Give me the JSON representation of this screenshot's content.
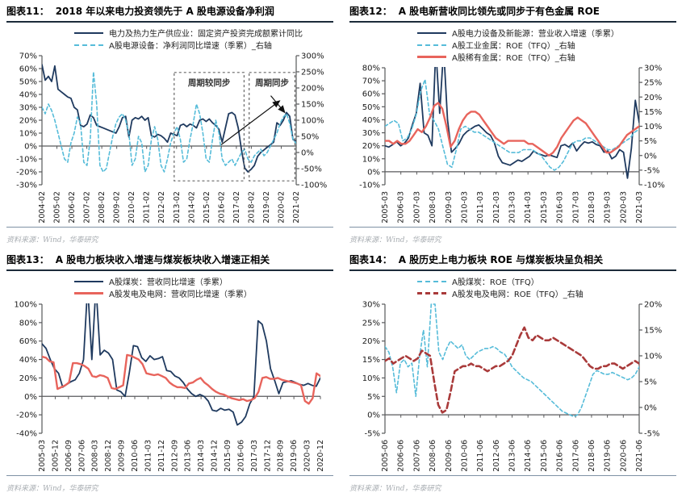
{
  "panels": [
    {
      "label": "图表11：",
      "title": "2018 年以来电力投资领先于 A 股电源设备净利润",
      "source": "资料来源：Wind，华泰研究"
    },
    {
      "label": "图表12：",
      "title": "A 股电新营收同比领先或同步于有色金属 ROE",
      "source": "资料来源：Wind，华泰研究"
    },
    {
      "label": "图表13：",
      "title": "A 股电力板块收入增速与煤炭板块收入增速正相关",
      "source": "资料来源：Wind，华泰研究"
    },
    {
      "label": "图表14：",
      "title": "A 股历史上电力板块 ROE 与煤炭板块呈负相关",
      "source": "资料来源：Wind，华泰研究"
    }
  ],
  "colors": {
    "navy": "#1f3a5f",
    "cyan": "#56bcd9",
    "salmon": "#e8645c",
    "darkred": "#a93a3a",
    "axis": "#58595b",
    "annotation": "#666666"
  },
  "chart_data": [
    {
      "type": "line",
      "title": "2018 年以来电力投资领先于 A 股电源设备净利润",
      "x_labels": [
        "2004-02",
        "2005-02",
        "2006-02",
        "2007-02",
        "2008-02",
        "2009-02",
        "2010-02",
        "2011-02",
        "2012-02",
        "2013-02",
        "2014-02",
        "2015-02",
        "2016-02",
        "2017-02",
        "2018-02",
        "2019-02",
        "2020-02",
        "2021-02"
      ],
      "axes": {
        "left": {
          "min": -30,
          "max": 70,
          "ticks": [
            "70%",
            "60%",
            "50%",
            "40%",
            "30%",
            "20%",
            "10%",
            "0%",
            "-10%",
            "-20%",
            "-30%"
          ]
        },
        "right": {
          "min": -100,
          "max": 300,
          "ticks": [
            "300%",
            "250%",
            "200%",
            "150%",
            "100%",
            "50%",
            "0%",
            "-50%",
            "-100%"
          ]
        }
      },
      "series": [
        {
          "name": "电力及热力生产供应业：固定资产投资完成额累计同比",
          "axis": "left",
          "color": "#1f3a5f",
          "dash": "",
          "width": 1.8,
          "values": [
            63,
            51,
            54,
            50,
            62,
            44,
            42,
            40,
            38,
            37,
            30,
            28,
            16,
            15,
            17,
            24,
            22,
            16,
            15,
            14,
            13,
            12,
            11,
            10,
            15,
            22,
            23,
            7,
            20,
            22,
            21,
            23,
            20,
            22,
            8,
            7,
            9,
            8,
            6,
            3,
            10,
            9,
            8,
            16,
            17,
            15,
            17,
            16,
            14,
            20,
            21,
            19,
            21,
            18,
            16,
            13,
            3,
            14,
            25,
            26,
            24,
            14,
            -3,
            -17,
            -20,
            -18,
            -15,
            -8,
            -5,
            -3,
            -1,
            1,
            3,
            18,
            16,
            20,
            26,
            23,
            5,
            4
          ]
        },
        {
          "name": "A股电源设备：净利润同比增速（季累）_右轴",
          "axis": "right",
          "color": "#56bcd9",
          "dash": "4 3",
          "width": 1.6,
          "values": [
            140,
            120,
            150,
            130,
            100,
            60,
            20,
            -20,
            -30,
            30,
            60,
            110,
            90,
            -30,
            -40,
            40,
            250,
            150,
            -40,
            -60,
            -50,
            0,
            50,
            90,
            110,
            120,
            100,
            60,
            -40,
            -20,
            50,
            30,
            -60,
            -40,
            40,
            80,
            40,
            -40,
            -60,
            -20,
            30,
            60,
            80,
            40,
            -30,
            -20,
            40,
            90,
            150,
            120,
            60,
            -20,
            -30,
            40,
            100,
            60,
            -20,
            -40,
            -30,
            -20,
            -40,
            -20,
            0,
            10,
            -20,
            -30,
            -10,
            0,
            10,
            -10,
            0,
            20,
            40,
            60,
            90,
            110,
            120,
            90,
            40,
            28
          ]
        }
      ],
      "annotations": {
        "boxes": [
          {
            "x0": 0.52,
            "x1": 0.795,
            "v0": 57,
            "v1": -27,
            "label": "周期较同步"
          },
          {
            "x0": 0.815,
            "x1": 0.995,
            "v0": 57,
            "v1": -27,
            "label": "周期同步"
          }
        ],
        "arrows": [
          {
            "x0": 0.705,
            "v0": 1,
            "x1": 0.935,
            "v1": 35
          },
          {
            "x0": 0.9,
            "v0": 39,
            "x1": 0.955,
            "v1": 26
          }
        ]
      }
    },
    {
      "type": "line",
      "title": "A 股电新营收同比领先或同步于有色金属 ROE",
      "x_labels": [
        "2005-03",
        "2006-03",
        "2007-03",
        "2008-03",
        "2009-03",
        "2010-03",
        "2011-03",
        "2012-03",
        "2013-03",
        "2014-03",
        "2015-03",
        "2016-03",
        "2017-03",
        "2018-03",
        "2019-03",
        "2020-03",
        "2021-03"
      ],
      "axes": {
        "left": {
          "min": -10,
          "max": 80,
          "ticks": [
            "80%",
            "70%",
            "60%",
            "50%",
            "40%",
            "30%",
            "20%",
            "10%",
            "0%",
            "-10%"
          ]
        },
        "right": {
          "min": -10,
          "max": 30,
          "ticks": [
            "30%",
            "25%",
            "20%",
            "15%",
            "10%",
            "5%",
            "0%",
            "-5%",
            "-10%"
          ]
        }
      },
      "series": [
        {
          "name": "A股电力设备及新能源：营业收入增速（季累）",
          "axis": "left",
          "color": "#1f3a5f",
          "dash": "",
          "width": 1.8,
          "values": [
            20,
            19,
            21,
            23,
            20,
            22,
            26,
            36,
            45,
            68,
            30,
            28,
            20,
            95,
            45,
            95,
            40,
            15,
            18,
            22,
            28,
            31,
            33,
            35,
            36,
            33,
            30,
            28,
            22,
            12,
            7,
            6,
            5,
            7,
            9,
            8,
            10,
            12,
            16,
            14,
            13,
            12,
            13,
            12,
            11,
            20,
            21,
            19,
            22,
            16,
            20,
            23,
            22,
            23,
            21,
            20,
            15,
            16,
            10,
            12,
            17,
            15,
            -5,
            18,
            55,
            38
          ]
        },
        {
          "name": "A股工业金属：ROE（TFQ）_右轴",
          "axis": "right",
          "color": "#56bcd9",
          "dash": "4 3",
          "width": 1.6,
          "values": [
            10,
            11,
            12,
            11,
            5,
            6,
            9,
            14,
            22,
            26,
            14,
            12,
            9,
            3,
            -3,
            -4,
            2,
            9,
            10,
            9,
            8,
            8,
            7,
            6,
            5,
            4,
            3,
            2,
            1,
            1,
            1,
            2,
            2,
            2,
            1,
            0,
            -2,
            -4,
            -5,
            -4,
            -2,
            1,
            4,
            5,
            5,
            6,
            6,
            5,
            4,
            3,
            2,
            2,
            3,
            4,
            5,
            6,
            8,
            9
          ]
        },
        {
          "name": "A股稀有金属：ROE（TFQ）_右轴",
          "axis": "right",
          "color": "#e8645c",
          "dash": "",
          "width": 2.4,
          "values": [
            5,
            5,
            4,
            5,
            4,
            4,
            5,
            7,
            9,
            8,
            10,
            13,
            17,
            18,
            16,
            10,
            3,
            5,
            9,
            12,
            14,
            15,
            15,
            14,
            12,
            10,
            8,
            6,
            5,
            4,
            5,
            5,
            5,
            5,
            5,
            4,
            4,
            3,
            2,
            1,
            0,
            1,
            3,
            6,
            8,
            10,
            12,
            13,
            12,
            11,
            9,
            7,
            5,
            3,
            1,
            1,
            2,
            3,
            5,
            7,
            8,
            9,
            10
          ]
        }
      ],
      "annotations": {
        "boxes": [],
        "arrows": []
      }
    },
    {
      "type": "line",
      "title": "A 股电力板块收入增速与煤炭板块收入增速正相关",
      "x_labels": [
        "2005-03",
        "2005-12",
        "2006-09",
        "2007-06",
        "2008-03",
        "2008-12",
        "2009-09",
        "2010-06",
        "2011-03",
        "2011-12",
        "2012-09",
        "2013-06",
        "2014-03",
        "2014-12",
        "2015-09",
        "2016-06",
        "2017-03",
        "2017-12",
        "2018-09",
        "2019-06",
        "2020-03",
        "2020-12"
      ],
      "axes": {
        "left": {
          "min": -40,
          "max": 100,
          "ticks": [
            "100%",
            "80%",
            "60%",
            "40%",
            "20%",
            "0%",
            "-20%",
            "-40%"
          ]
        },
        "right": null
      },
      "series": [
        {
          "name": "A股煤炭：营收同比增速（季累）",
          "axis": "left",
          "color": "#1f3a5f",
          "dash": "",
          "width": 1.8,
          "values": [
            57,
            52,
            40,
            30,
            25,
            10,
            13,
            16,
            18,
            25,
            40,
            120,
            40,
            120,
            45,
            50,
            47,
            40,
            7,
            5,
            0,
            25,
            55,
            54,
            42,
            38,
            44,
            40,
            41,
            43,
            28,
            27,
            22,
            20,
            15,
            8,
            3,
            0,
            2,
            0,
            -5,
            -15,
            -16,
            -13,
            -15,
            -14,
            -17,
            -31,
            -28,
            -22,
            -8,
            0,
            82,
            78,
            60,
            30,
            17,
            3,
            15,
            16,
            17,
            15,
            13,
            12,
            14,
            12,
            11,
            20
          ]
        },
        {
          "name": "A股发电及电网：营收同比增速（季累）",
          "axis": "left",
          "color": "#e8645c",
          "dash": "",
          "width": 2.4,
          "values": [
            43,
            42,
            38,
            37,
            8,
            10,
            12,
            15,
            36,
            36,
            35,
            33,
            30,
            22,
            21,
            23,
            22,
            20,
            9,
            8,
            10,
            12,
            45,
            44,
            42,
            40,
            35,
            25,
            24,
            23,
            24,
            22,
            20,
            15,
            12,
            10,
            10,
            9,
            14,
            15,
            18,
            20,
            15,
            12,
            8,
            5,
            3,
            2,
            0,
            -2,
            -3,
            -4,
            -3,
            -5,
            -4,
            -2,
            5,
            20,
            21,
            19,
            19,
            20,
            18,
            17,
            16,
            15,
            14,
            12,
            -5,
            -8,
            -2,
            25,
            22
          ]
        }
      ],
      "annotations": {
        "boxes": [],
        "arrows": []
      }
    },
    {
      "type": "line",
      "title": "A 股历史上电力板块 ROE 与煤炭板块呈负相关",
      "x_labels": [
        "2005-06",
        "2006-06",
        "2007-06",
        "2008-06",
        "2009-06",
        "2010-06",
        "2011-06",
        "2012-06",
        "2013-06",
        "2014-06",
        "2015-06",
        "2016-06",
        "2017-06",
        "2018-06",
        "2019-06",
        "2020-06",
        "2021-06"
      ],
      "axes": {
        "left": {
          "min": -5,
          "max": 30,
          "ticks": [
            "30%",
            "25%",
            "20%",
            "15%",
            "10%",
            "5%",
            "0%",
            "-5%"
          ]
        },
        "right": {
          "min": -5,
          "max": 20,
          "ticks": [
            "20%",
            "15%",
            "10%",
            "5%",
            "0%",
            "-5%"
          ]
        }
      },
      "series": [
        {
          "name": "A股煤炭：ROE（TFQ）",
          "axis": "left",
          "color": "#56bcd9",
          "dash": "4 3",
          "width": 1.6,
          "values": [
            18.5,
            17,
            13,
            6,
            14,
            15,
            13,
            14,
            5,
            16,
            23,
            13,
            30,
            30,
            17,
            15,
            18,
            20,
            19,
            18,
            19,
            16,
            15,
            16,
            17,
            17.5,
            18,
            18,
            18.5,
            18,
            17,
            16.5,
            15,
            13,
            12,
            11,
            10,
            9.5,
            9,
            8,
            7,
            6,
            5,
            4,
            3,
            2,
            1,
            0.5,
            0,
            -0.5,
            0,
            2,
            5,
            8,
            11,
            12,
            11.5,
            11,
            11,
            11.5,
            11,
            10.5,
            10,
            9.5,
            10,
            11,
            13
          ]
        },
        {
          "name": "A股发电及电网：ROE（TFQ）_右轴",
          "axis": "right",
          "color": "#a93a3a",
          "dash": "7 4",
          "width": 2.6,
          "values": [
            9,
            9.5,
            8.5,
            9,
            9.5,
            10,
            9.5,
            9,
            9.5,
            11,
            10.5,
            10,
            5,
            0.5,
            -1,
            -0.5,
            3,
            7,
            7.5,
            8,
            8,
            8.5,
            8,
            8,
            7.5,
            7,
            7.5,
            8,
            8,
            8.5,
            9,
            10,
            12,
            14,
            15.5,
            13.5,
            13,
            14,
            13.5,
            13,
            13,
            13.5,
            13,
            12.5,
            12,
            11.5,
            11,
            10.5,
            10,
            9,
            8,
            7.5,
            7.5,
            8,
            8,
            8.5,
            8.5,
            8,
            7.5,
            8,
            8.5,
            9,
            8.5
          ]
        }
      ],
      "annotations": {
        "boxes": [],
        "arrows": []
      }
    }
  ]
}
